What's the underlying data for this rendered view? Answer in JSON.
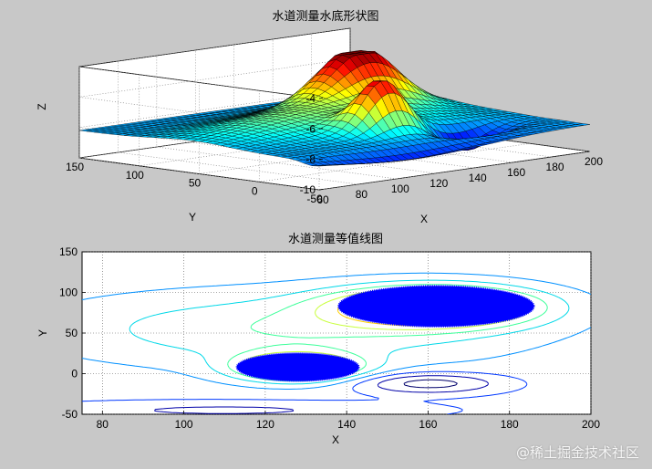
{
  "watermark": "@稀土掘金技术社区",
  "chart_data": [
    {
      "type": "surface3d",
      "title": "水道测量水底形状图",
      "xlabel": "X",
      "ylabel": "Y",
      "zlabel": "Z",
      "xlim": [
        60,
        200
      ],
      "ylim": [
        -50,
        150
      ],
      "zlim": [
        -10,
        -4
      ],
      "xticks": [
        60,
        80,
        100,
        120,
        140,
        160,
        180,
        200
      ],
      "yticks": [
        -50,
        0,
        50,
        100,
        150
      ],
      "zticks": [
        -10,
        -8,
        -6,
        -4
      ],
      "grid": true,
      "colormap": "jet",
      "features": [
        {
          "name": "peak",
          "x": 162,
          "y": 83,
          "z": -4.3
        },
        {
          "name": "peak",
          "x": 128,
          "y": 8,
          "z": -5.0
        },
        {
          "name": "trough",
          "x": 160,
          "y": -10,
          "z": -9.6
        }
      ]
    },
    {
      "type": "contour",
      "title": "水道测量等值线图",
      "xlabel": "X",
      "ylabel": "Y",
      "xlim": [
        75,
        200
      ],
      "ylim": [
        -50,
        150
      ],
      "xticks": [
        80,
        100,
        120,
        140,
        160,
        180,
        200
      ],
      "yticks": [
        -50,
        0,
        50,
        100,
        150
      ],
      "grid": true,
      "filled_regions": [
        {
          "cx": 162,
          "cy": 83,
          "rx": 24,
          "ry": 25,
          "color": "#0000ff"
        },
        {
          "cx": 128,
          "cy": 8,
          "rx": 15,
          "ry": 17,
          "color": "#0000ff"
        }
      ]
    }
  ]
}
